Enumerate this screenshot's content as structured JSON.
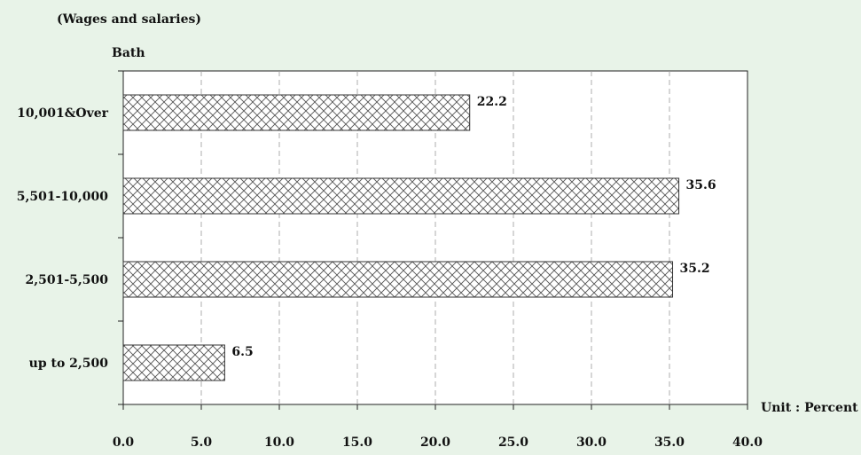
{
  "chart_data": {
    "type": "bar",
    "orientation": "horizontal",
    "title": "(Wages and salaries)",
    "ylabel": "Bath",
    "xlabel": "Unit : Percent",
    "categories": [
      "10,001&Over",
      "5,501-10,000",
      "2,501-5,500",
      "up to 2,500"
    ],
    "values": [
      22.2,
      35.6,
      35.2,
      6.5
    ],
    "value_labels": [
      "22.2",
      "35.6",
      "35.2",
      "6.5"
    ],
    "xlim": [
      0,
      40
    ],
    "xticks": [
      "0.0",
      "5.0",
      "10.0",
      "15.0",
      "20.0",
      "25.0",
      "30.0",
      "35.0",
      "40.0"
    ],
    "grid": "vertical dashed",
    "bar_pattern": "crosshatch",
    "colors": {
      "background": "#e8f3e8",
      "plot_bg": "#ffffff",
      "bar_stroke": "#333333",
      "grid": "#9a9a9a"
    }
  }
}
